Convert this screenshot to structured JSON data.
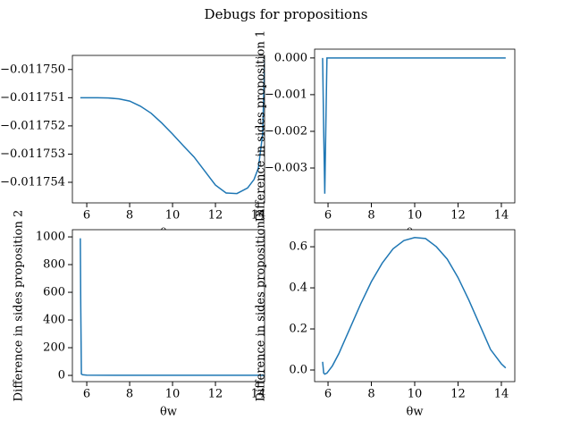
{
  "title": "Debugs for propositions",
  "chart_data": [
    {
      "type": "line",
      "xlabel": "θw",
      "color": "#1f77b4",
      "x": [
        5.7,
        6.5,
        7.0,
        7.5,
        8.0,
        8.5,
        9.0,
        9.5,
        10.0,
        10.5,
        11.0,
        11.5,
        12.0,
        12.5,
        13.0,
        13.5,
        13.8,
        14.0,
        14.2,
        14.3
      ],
      "values": [
        -0.011751,
        -0.011751,
        -0.01175101,
        -0.01175104,
        -0.01175112,
        -0.0117513,
        -0.01175155,
        -0.0117519,
        -0.01175229,
        -0.0117527,
        -0.0117531,
        -0.0117536,
        -0.0117541,
        -0.01175438,
        -0.0117544,
        -0.0117542,
        -0.0117539,
        -0.0117535,
        -0.0117523,
        -0.01174955
      ],
      "xlim": [
        5.33,
        14.29
      ],
      "ylim": [
        -0.01175473,
        -0.0117495
      ],
      "xticks": [
        6,
        8,
        10,
        12,
        14
      ],
      "yticks": [
        {
          "value": -0.01175,
          "label": "−0.011750"
        },
        {
          "value": -0.011751,
          "label": "−0.011751"
        },
        {
          "value": -0.011752,
          "label": "−0.011752"
        },
        {
          "value": -0.011753,
          "label": "−0.011753"
        },
        {
          "value": -0.011754,
          "label": "−0.011754"
        }
      ]
    },
    {
      "type": "line",
      "xlabel": "θw",
      "ylabel": "Difference in sides proposition 1",
      "color": "#1f77b4",
      "x": [
        5.75,
        5.8,
        5.85,
        5.9,
        5.95,
        6.5,
        8,
        10,
        12,
        14.2
      ],
      "values": [
        0,
        -0.002,
        -0.0037,
        -0.0018,
        0,
        0,
        0,
        0,
        0,
        0
      ],
      "xlim": [
        5.38,
        14.62
      ],
      "ylim": [
        -0.00395,
        0.00024
      ],
      "xticks": [
        6,
        8,
        10,
        12,
        14
      ],
      "yticks": [
        {
          "value": 0,
          "label": "0.000"
        },
        {
          "value": -0.001,
          "label": "−0.001"
        },
        {
          "value": -0.002,
          "label": "−0.002"
        },
        {
          "value": -0.003,
          "label": "−0.003"
        }
      ]
    },
    {
      "type": "line",
      "xlabel": "θw",
      "ylabel": "Difference in sides proposition 2",
      "color": "#1f77b4",
      "x": [
        5.7,
        5.72,
        5.75,
        5.8,
        6,
        8,
        10,
        12,
        14.3
      ],
      "values": [
        990,
        500,
        10,
        5,
        2,
        1,
        1,
        1,
        1
      ],
      "xlim": [
        5.33,
        14.29
      ],
      "ylim": [
        -45,
        1052
      ],
      "xticks": [
        6,
        8,
        10,
        12,
        14
      ],
      "yticks": [
        0,
        200,
        400,
        600,
        800,
        1000
      ]
    },
    {
      "type": "line",
      "xlabel": "θw",
      "ylabel": "Difference in sides proposition 3",
      "color": "#1f77b4",
      "x": [
        5.75,
        5.8,
        5.85,
        5.95,
        6.2,
        6.5,
        7,
        7.5,
        8,
        8.5,
        9,
        9.5,
        10,
        10.5,
        11,
        11.5,
        12,
        12.5,
        13,
        13.5,
        14,
        14.2
      ],
      "values": [
        0.04,
        -0.015,
        -0.02,
        -0.015,
        0.02,
        0.08,
        0.2,
        0.32,
        0.43,
        0.52,
        0.59,
        0.63,
        0.645,
        0.64,
        0.6,
        0.54,
        0.45,
        0.34,
        0.22,
        0.1,
        0.03,
        0.01
      ],
      "xlim": [
        5.38,
        14.62
      ],
      "ylim": [
        -0.0565,
        0.683
      ],
      "xticks": [
        6,
        8,
        10,
        12,
        14
      ],
      "yticks": [
        {
          "value": 0,
          "label": "0.0"
        },
        0.2,
        0.4,
        0.6
      ]
    }
  ]
}
